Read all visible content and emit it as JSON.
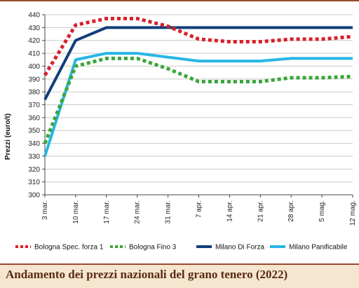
{
  "chart_data": {
    "type": "line",
    "title": "Andamento dei prezzi nazionali del grano tenero (2022)",
    "ylabel": "Prezzi (euro/t)",
    "xlabel": "",
    "ylim": [
      300,
      440
    ],
    "yticks": [
      300,
      310,
      320,
      330,
      340,
      350,
      360,
      370,
      380,
      390,
      400,
      410,
      420,
      430,
      440
    ],
    "categories": [
      "3 mar.",
      "10 mar.",
      "17 mar.",
      "24 mar.",
      "31 mar.",
      "7 apr.",
      "14 apr.",
      "21 apr.",
      "28 apr.",
      "5 mag.",
      "12 mag."
    ],
    "grid": "horizontal",
    "legend_position": "bottom",
    "series": [
      {
        "name": "Bologna Spec. forza 1",
        "color": "#d8202a",
        "style": "dotted",
        "values": [
          393,
          432,
          437,
          437,
          431,
          421,
          419,
          419,
          421,
          421,
          423
        ]
      },
      {
        "name": "Bologna Fino 3",
        "color": "#3aa63a",
        "style": "dotted",
        "values": [
          340,
          400,
          406,
          406,
          398,
          388,
          388,
          388,
          391,
          391,
          392
        ]
      },
      {
        "name": "Milano Di Forza",
        "color": "#123e7c",
        "style": "solid",
        "values": [
          374,
          420,
          430,
          430,
          430,
          430,
          430,
          430,
          430,
          430,
          430
        ]
      },
      {
        "name": "Milano Panificabile",
        "color": "#27b6e6",
        "style": "solid",
        "values": [
          330,
          405,
          410,
          410,
          407,
          404,
          404,
          404,
          406,
          406,
          406
        ]
      }
    ]
  }
}
